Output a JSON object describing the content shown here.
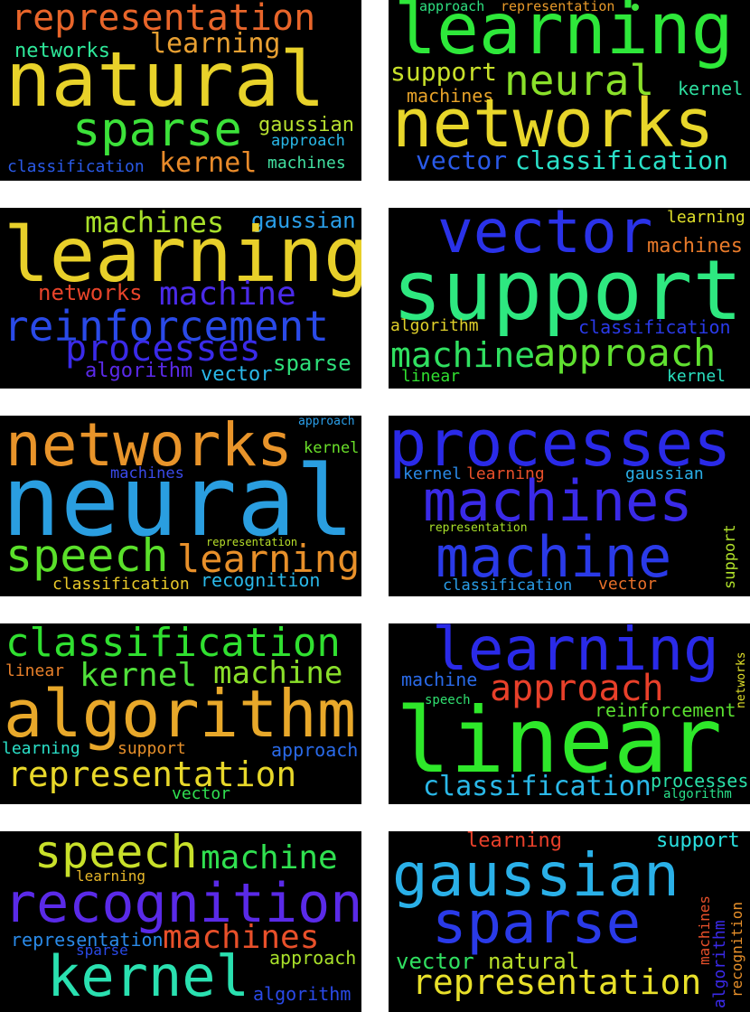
{
  "clouds": [
    {
      "words": [
        {
          "text": "representation",
          "color": "#e8652a"
        },
        {
          "text": "natural",
          "color": "#e8d22a"
        },
        {
          "text": "learning",
          "color": "#e8a032"
        },
        {
          "text": "networks",
          "color": "#2ee89a"
        },
        {
          "text": "sparse",
          "color": "#3ce23a"
        },
        {
          "text": "gaussian",
          "color": "#b8e030"
        },
        {
          "text": "approach",
          "color": "#2ab8e8"
        },
        {
          "text": "classification",
          "color": "#2a5ae8"
        },
        {
          "text": "kernel",
          "color": "#e88a2a"
        },
        {
          "text": "machines",
          "color": "#42e0a0"
        }
      ]
    },
    {
      "words": [
        {
          "text": "approach",
          "color": "#2ee080"
        },
        {
          "text": "representation",
          "color": "#e89a2a"
        },
        {
          "text": "learning",
          "color": "#2ee83a"
        },
        {
          "text": "support",
          "color": "#c8e02a"
        },
        {
          "text": "neural",
          "color": "#8ae02a"
        },
        {
          "text": "kernel",
          "color": "#2ee0a0"
        },
        {
          "text": "machines",
          "color": "#e8a32a"
        },
        {
          "text": "networks",
          "color": "#e8d62a"
        },
        {
          "text": "vector",
          "color": "#2a5ae8"
        },
        {
          "text": "classification",
          "color": "#2ae0c8"
        }
      ],
      "dot_color": "#3ce23a"
    },
    {
      "words": [
        {
          "text": "machines",
          "color": "#a8e02a"
        },
        {
          "text": "gaussian",
          "color": "#2a9ee8"
        },
        {
          "text": "learning",
          "color": "#e8d02a"
        },
        {
          "text": "networks",
          "color": "#e8442a"
        },
        {
          "text": "machine",
          "color": "#4a2ae8"
        },
        {
          "text": "reinforcement",
          "color": "#2a4ae8"
        },
        {
          "text": "processes",
          "color": "#3a2ae8"
        },
        {
          "text": "algorithm",
          "color": "#5a2ae8"
        },
        {
          "text": "vector",
          "color": "#2ab8e8"
        },
        {
          "text": "sparse",
          "color": "#2ee07a"
        }
      ]
    },
    {
      "words": [
        {
          "text": "vector",
          "color": "#2a32e8"
        },
        {
          "text": "learning",
          "color": "#e0e02a"
        },
        {
          "text": "machines",
          "color": "#e87a2a"
        },
        {
          "text": "support",
          "color": "#2ee880"
        },
        {
          "text": "algorithm",
          "color": "#e0d02a"
        },
        {
          "text": "classification",
          "color": "#2a3ae8"
        },
        {
          "text": "machine",
          "color": "#30e060"
        },
        {
          "text": "approach",
          "color": "#60e030"
        },
        {
          "text": "linear",
          "color": "#30e030"
        },
        {
          "text": "kernel",
          "color": "#2ae0c0"
        }
      ]
    },
    {
      "words": [
        {
          "text": "approach",
          "color": "#2a9ee8"
        },
        {
          "text": "networks",
          "color": "#e8942a"
        },
        {
          "text": "kernel",
          "color": "#6ae02a"
        },
        {
          "text": "machines",
          "color": "#3a4ae8"
        },
        {
          "text": "neural",
          "color": "#2a9ee0"
        },
        {
          "text": "speech",
          "color": "#5ae02a"
        },
        {
          "text": "learning",
          "color": "#e8902a"
        },
        {
          "text": "representation",
          "color": "#b8e02a"
        },
        {
          "text": "classification",
          "color": "#e8c82a"
        },
        {
          "text": "recognition",
          "color": "#2ab8e8"
        }
      ]
    },
    {
      "words": [
        {
          "text": "processes",
          "color": "#2a2ae8"
        },
        {
          "text": "kernel",
          "color": "#2a8ae8"
        },
        {
          "text": "learning",
          "color": "#e8502a"
        },
        {
          "text": "gaussian",
          "color": "#2ab0e8"
        },
        {
          "text": "machines",
          "color": "#3a2ae8"
        },
        {
          "text": "representation",
          "color": "#a8e02a"
        },
        {
          "text": "support",
          "color": "#b0e02a"
        },
        {
          "text": "machine",
          "color": "#2a3ae8"
        },
        {
          "text": "classification",
          "color": "#2a9ee8"
        },
        {
          "text": "vector",
          "color": "#e8702a"
        }
      ]
    },
    {
      "words": [
        {
          "text": "classification",
          "color": "#30e030"
        },
        {
          "text": "linear",
          "color": "#e8802a"
        },
        {
          "text": "kernel",
          "color": "#50e03a"
        },
        {
          "text": "machine",
          "color": "#8ae02a"
        },
        {
          "text": "algorithm",
          "color": "#e8a82a"
        },
        {
          "text": "learning",
          "color": "#2ae0c8"
        },
        {
          "text": "support",
          "color": "#e8902a"
        },
        {
          "text": "approach",
          "color": "#2a6ae8"
        },
        {
          "text": "representation",
          "color": "#e8d82a"
        },
        {
          "text": "vector",
          "color": "#30e050"
        }
      ]
    },
    {
      "words": [
        {
          "text": "learning",
          "color": "#2a2ae8"
        },
        {
          "text": "networks",
          "color": "#e0e02a"
        },
        {
          "text": "machine",
          "color": "#2a6ae8"
        },
        {
          "text": "approach",
          "color": "#e8402a"
        },
        {
          "text": "speech",
          "color": "#30e070"
        },
        {
          "text": "reinforcement",
          "color": "#5ae030"
        },
        {
          "text": "linear",
          "color": "#2ee82a"
        },
        {
          "text": "classification",
          "color": "#2ab8e8"
        },
        {
          "text": "processes",
          "color": "#2ae0a8"
        },
        {
          "text": "algorithm",
          "color": "#2ae08a"
        }
      ]
    },
    {
      "words": [
        {
          "text": "speech",
          "color": "#c8e02a"
        },
        {
          "text": "machine",
          "color": "#30e050"
        },
        {
          "text": "learning",
          "color": "#e8b82a"
        },
        {
          "text": "recognition",
          "color": "#5a2ae8"
        },
        {
          "text": "representation",
          "color": "#2a8ae8"
        },
        {
          "text": "machines",
          "color": "#e8502a"
        },
        {
          "text": "sparse",
          "color": "#2a4ae8"
        },
        {
          "text": "approach",
          "color": "#a8e02a"
        },
        {
          "text": "kernel",
          "color": "#2ae0b0"
        },
        {
          "text": "algorithm",
          "color": "#2a4ae8"
        }
      ]
    },
    {
      "words": [
        {
          "text": "learning",
          "color": "#e8402a"
        },
        {
          "text": "support",
          "color": "#2ae0e0"
        },
        {
          "text": "gaussian",
          "color": "#2ab0e8"
        },
        {
          "text": "sparse",
          "color": "#2a3ae8"
        },
        {
          "text": "machines",
          "color": "#e8502a"
        },
        {
          "text": "algorithm",
          "color": "#3a2ae8"
        },
        {
          "text": "recognition",
          "color": "#e8902a"
        },
        {
          "text": "vector",
          "color": "#30e060"
        },
        {
          "text": "natural",
          "color": "#b8e02a"
        },
        {
          "text": "representation",
          "color": "#e8e02a"
        }
      ]
    }
  ]
}
